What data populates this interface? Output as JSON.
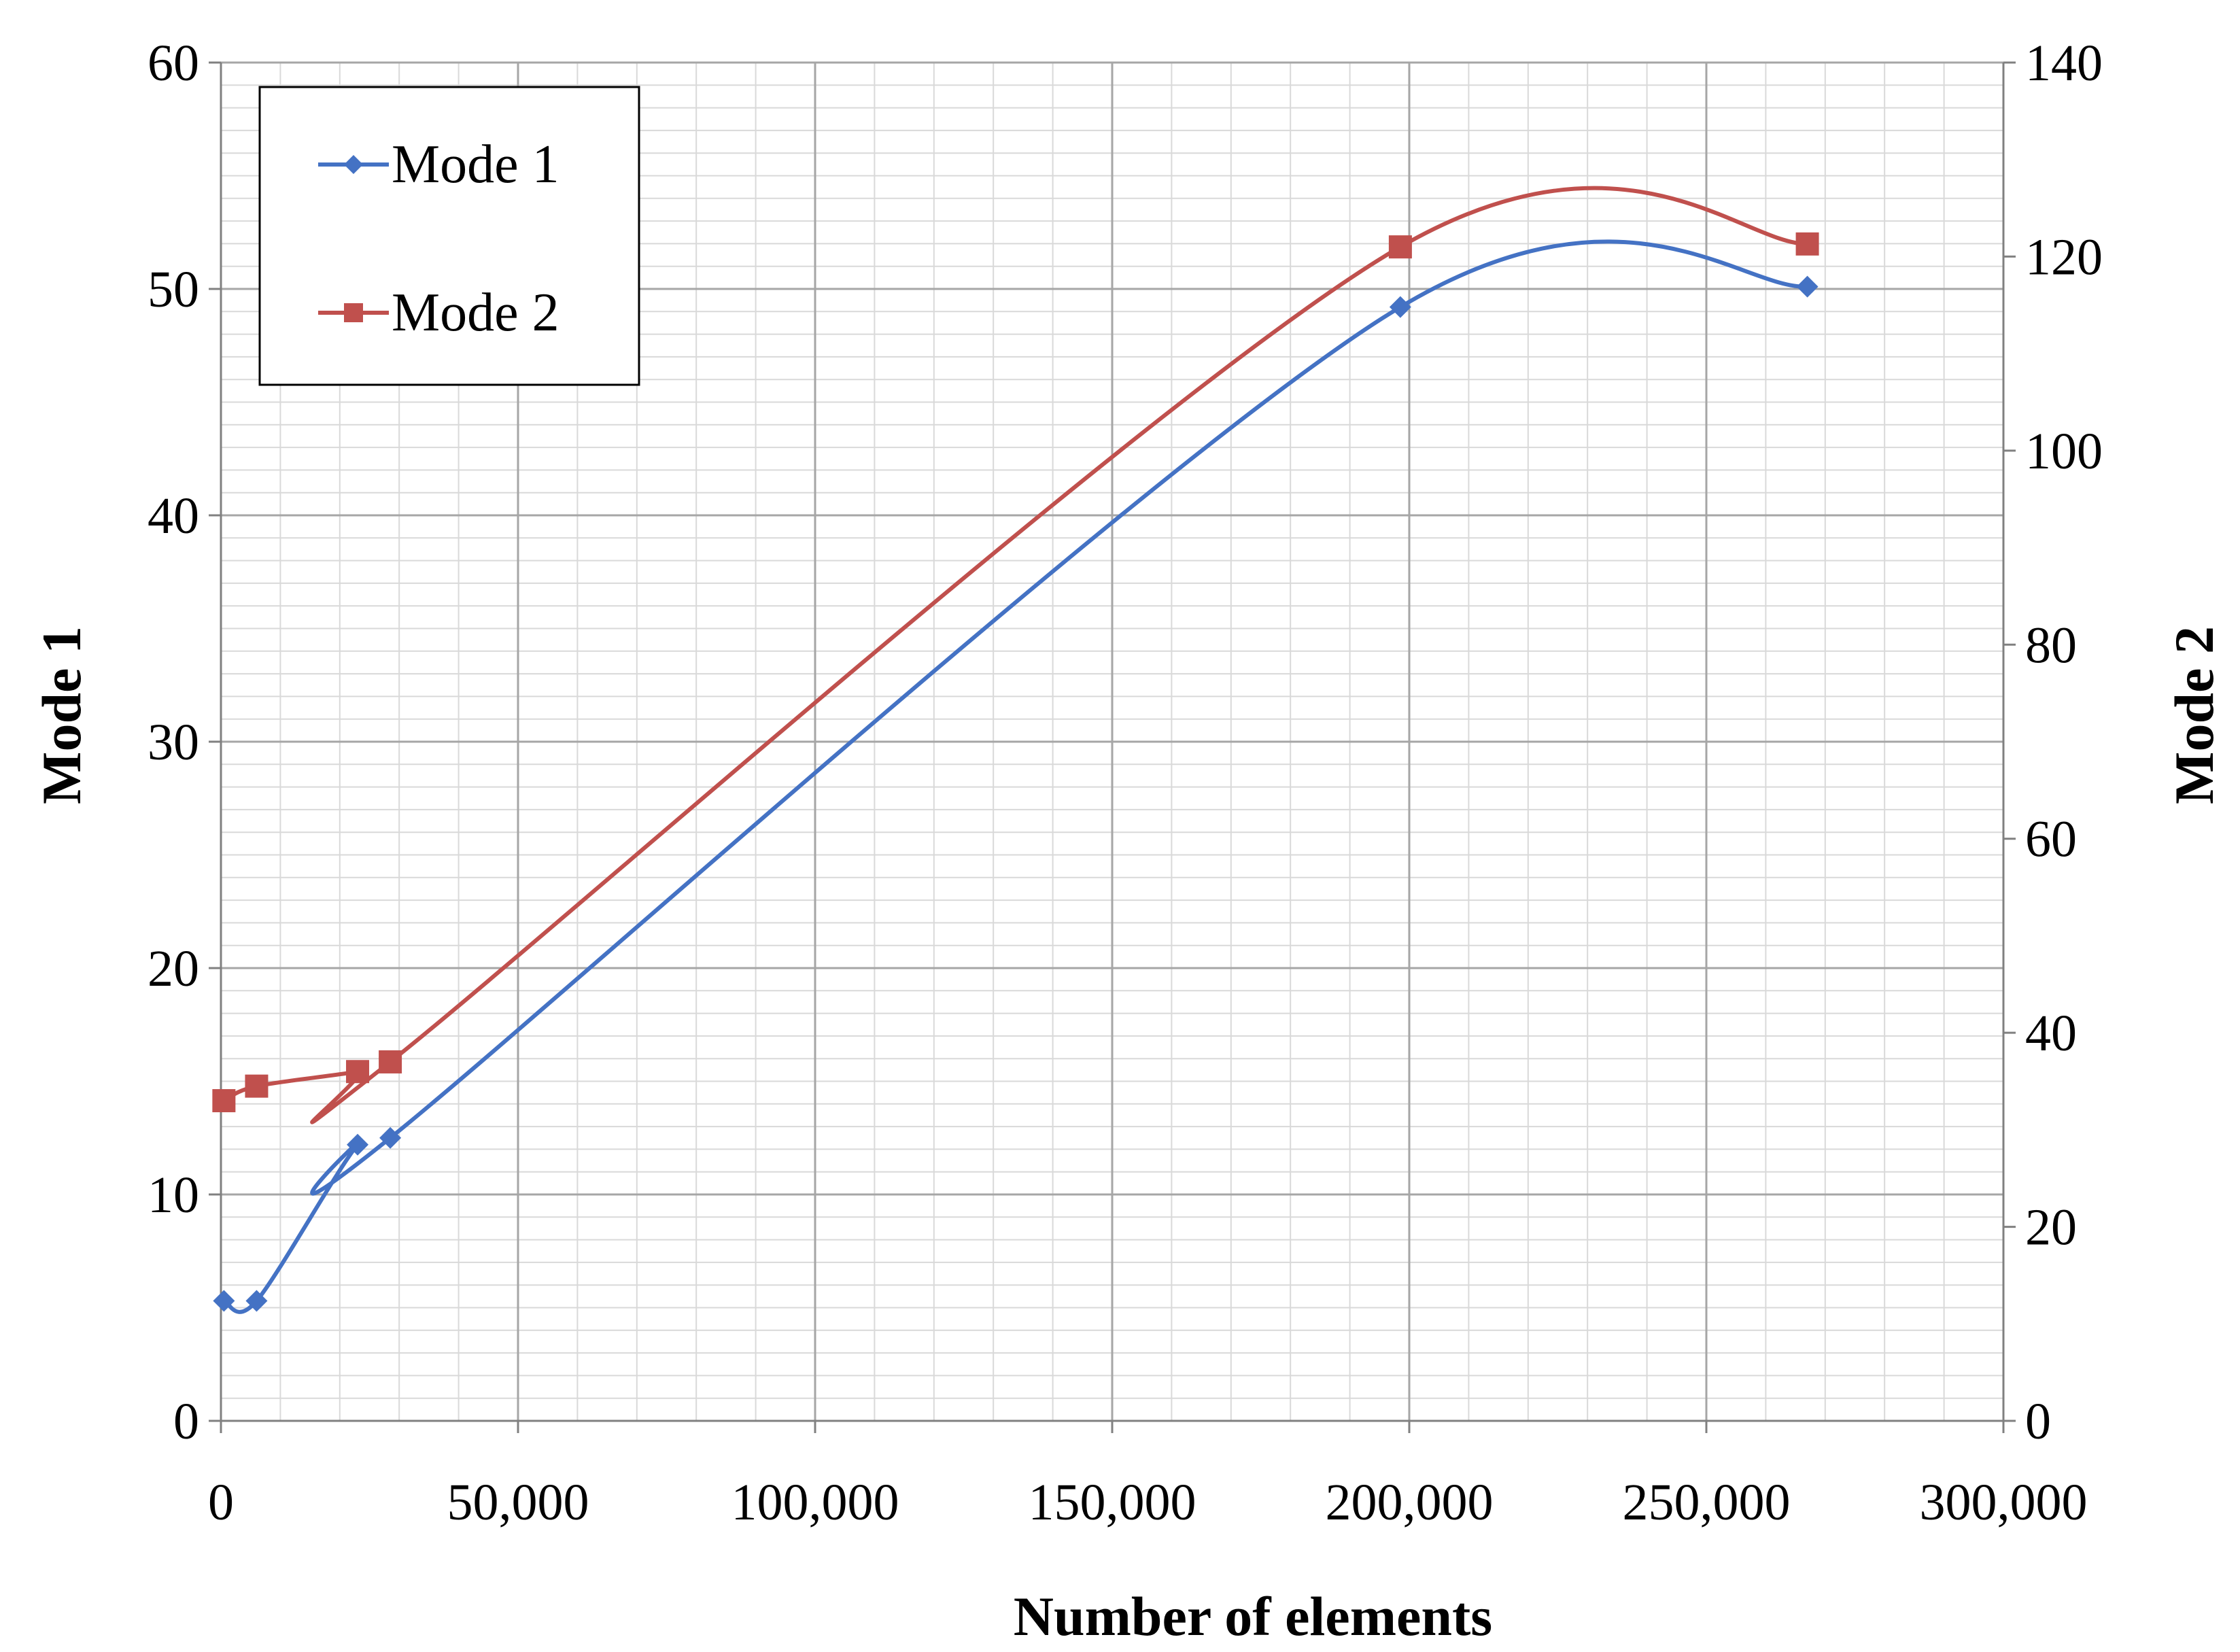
{
  "chart_data": {
    "type": "line",
    "title": "",
    "xlabel": "Number of elements",
    "ylabel": "Mode 1",
    "y2label": "Mode 2",
    "xlim": [
      0,
      300000
    ],
    "ylim": [
      0,
      60
    ],
    "y2lim": [
      0,
      140
    ],
    "xticks": [
      0,
      50000,
      100000,
      150000,
      200000,
      250000,
      300000
    ],
    "xtick_labels": [
      "0",
      "50,000",
      "100,000",
      "150,000",
      "200,000",
      "250,000",
      "300,000"
    ],
    "yticks": [
      0,
      10,
      20,
      30,
      40,
      50,
      60
    ],
    "ytick_labels": [
      "0",
      "10",
      "20",
      "30",
      "40",
      "50",
      "60"
    ],
    "y2ticks": [
      0,
      20,
      40,
      60,
      80,
      100,
      120,
      140
    ],
    "y2tick_labels": [
      "0",
      "20",
      "40",
      "60",
      "80",
      "100",
      "120",
      "140"
    ],
    "grid": true,
    "legend_position": "top-left",
    "series": [
      {
        "name": "Mode 1",
        "axis": "left",
        "color": "#4472C4",
        "marker": "diamond",
        "x": [
          500,
          6000,
          23000,
          28500,
          198500,
          267000
        ],
        "y": [
          5.3,
          5.3,
          12.2,
          12.5,
          49.2,
          50.1
        ]
      },
      {
        "name": "Mode 2",
        "axis": "right",
        "color": "#C0504D",
        "marker": "square",
        "x": [
          500,
          6000,
          23000,
          28500,
          198500,
          267000
        ],
        "y": [
          33.0,
          34.5,
          36.0,
          37.0,
          121.0,
          121.3
        ]
      }
    ]
  }
}
